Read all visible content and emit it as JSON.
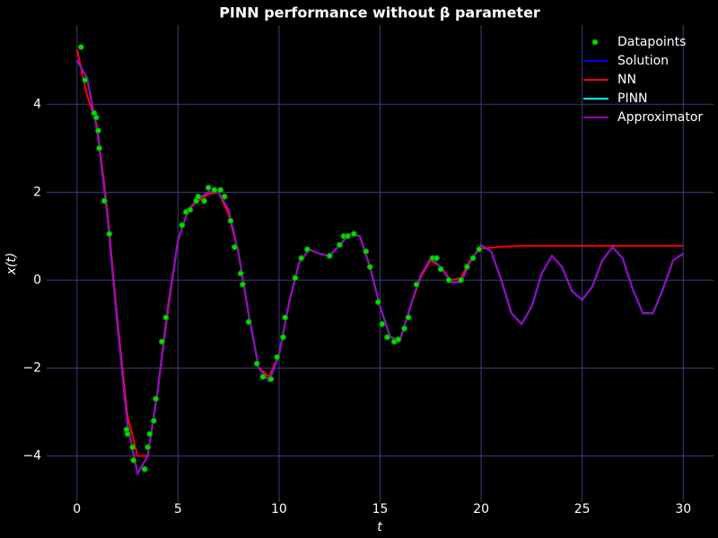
{
  "chart_data": {
    "type": "line",
    "title": "PINN performance without β parameter",
    "xlabel": "t",
    "ylabel": "x(t)",
    "background": "#000000",
    "grid": true,
    "grid_color": "#3c3c80",
    "legend": "upper right",
    "xlim": [
      -1.5,
      31.5
    ],
    "ylim": [
      -5.05,
      5.8
    ],
    "xticks": [
      0,
      5,
      10,
      15,
      20,
      25,
      30
    ],
    "yticks": [
      {
        "value": -4,
        "label": "−4"
      },
      {
        "value": -2,
        "label": "−2"
      },
      0,
      2,
      4
    ],
    "x": [
      0,
      0.5,
      1,
      1.5,
      2,
      2.5,
      3,
      3.5,
      4,
      4.5,
      5,
      5.5,
      6,
      6.5,
      7,
      7.5,
      8,
      8.5,
      9,
      9.5,
      10,
      10.5,
      11,
      11.5,
      12,
      12.5,
      13,
      13.5,
      14,
      14.5,
      15,
      15.5,
      16,
      16.5,
      17,
      17.5,
      18,
      18.5,
      19,
      19.5,
      20,
      20.5,
      21,
      21.5,
      22,
      22.5,
      23,
      23.5,
      24,
      24.5,
      25,
      25.5,
      26,
      26.5,
      27,
      27.5,
      28,
      28.5,
      29,
      29.5,
      30
    ],
    "series": [
      {
        "name": "Datapoints",
        "type": "scatter",
        "color": "#00e000",
        "x": [
          0.2,
          0.4,
          0.85,
          0.95,
          1.05,
          1.1,
          1.35,
          1.6,
          2.45,
          2.5,
          2.75,
          2.8,
          3.35,
          3.5,
          3.6,
          3.8,
          3.9,
          4.2,
          4.4,
          5.2,
          5.4,
          5.6,
          5.9,
          6.0,
          6.3,
          6.5,
          6.8,
          7.1,
          7.3,
          7.6,
          7.8,
          8.1,
          8.2,
          8.5,
          8.9,
          9.2,
          9.6,
          9.9,
          10.2,
          10.3,
          10.8,
          11.1,
          11.4,
          12.5,
          13.0,
          13.2,
          13.4,
          13.7,
          14.3,
          14.5,
          14.9,
          15.1,
          15.35,
          15.7,
          15.9,
          16.2,
          16.4,
          16.8,
          17.6,
          17.8,
          18.0,
          18.4,
          19.0,
          19.3,
          19.6,
          19.9
        ],
        "values": [
          5.3,
          4.55,
          3.8,
          3.7,
          3.4,
          3.0,
          1.8,
          1.05,
          -3.4,
          -3.5,
          -3.8,
          -4.1,
          -4.3,
          -3.8,
          -3.5,
          -3.2,
          -2.7,
          -1.4,
          -0.85,
          1.25,
          1.55,
          1.6,
          1.8,
          1.9,
          1.8,
          2.1,
          2.05,
          2.05,
          1.9,
          1.35,
          0.75,
          0.15,
          -0.1,
          -0.95,
          -1.9,
          -2.2,
          -2.25,
          -1.75,
          -1.3,
          -0.85,
          0.05,
          0.5,
          0.7,
          0.55,
          0.8,
          1.0,
          1.0,
          1.05,
          0.65,
          0.3,
          -0.5,
          -1.0,
          -1.3,
          -1.4,
          -1.35,
          -1.1,
          -0.85,
          -0.1,
          0.5,
          0.5,
          0.25,
          0.0,
          0.0,
          0.3,
          0.5,
          0.7
        ]
      },
      {
        "name": "Solution",
        "color": "#0000ff",
        "values": [
          5.0,
          4.6,
          3.4,
          1.5,
          -1.0,
          -3.3,
          -4.4,
          -4.0,
          -2.5,
          -0.6,
          0.9,
          1.6,
          1.85,
          2.0,
          2.0,
          1.6,
          0.6,
          -0.8,
          -2.0,
          -2.3,
          -1.7,
          -0.5,
          0.4,
          0.7,
          0.6,
          0.55,
          0.8,
          1.05,
          1.0,
          0.3,
          -0.6,
          -1.3,
          -1.35,
          -0.6,
          0.1,
          0.5,
          0.3,
          -0.05,
          -0.05,
          0.45,
          0.8,
          0.65,
          0.0,
          -0.75,
          -1.0,
          -0.6,
          0.15,
          0.55,
          0.3,
          -0.25,
          -0.45,
          -0.15,
          0.45,
          0.75,
          0.5,
          -0.2,
          -0.75,
          -0.75,
          -0.2,
          0.45,
          0.6
        ]
      },
      {
        "name": "NN",
        "color": "#ff0000",
        "values": [
          5.25,
          4.2,
          3.5,
          1.6,
          -0.9,
          -3.1,
          -4.0,
          -4.0,
          -2.5,
          -0.7,
          0.9,
          1.6,
          1.8,
          1.95,
          2.0,
          1.5,
          0.6,
          -0.8,
          -2.0,
          -2.2,
          -1.7,
          -0.5,
          0.4,
          0.7,
          0.6,
          0.55,
          0.8,
          1.05,
          1.0,
          0.3,
          -0.6,
          -1.3,
          -1.35,
          -0.6,
          0.05,
          0.45,
          0.3,
          0.0,
          0.05,
          0.5,
          0.72,
          0.74,
          0.76,
          0.77,
          0.78,
          0.78,
          0.78,
          0.78,
          0.78,
          0.78,
          0.78,
          0.78,
          0.78,
          0.78,
          0.78,
          0.78,
          0.78,
          0.78,
          0.78,
          0.78,
          0.78
        ]
      },
      {
        "name": "PINN",
        "color": "#00ffff",
        "values": [
          5.0,
          4.6,
          3.4,
          1.5,
          -1.0,
          -3.3,
          -4.4,
          -4.0,
          -2.5,
          -0.6,
          0.9,
          1.6,
          1.85,
          2.0,
          2.0,
          1.6,
          0.6,
          -0.8,
          -2.0,
          -2.3,
          -1.7,
          -0.5,
          0.4,
          0.7,
          0.6,
          0.55,
          0.8,
          1.05,
          1.0,
          0.3,
          -0.6,
          -1.3,
          -1.35,
          -0.6,
          0.1,
          0.5,
          0.3,
          -0.05,
          -0.05,
          0.45,
          0.8,
          0.65,
          0.0,
          -0.75,
          -1.0,
          -0.6,
          0.15,
          0.55,
          0.3,
          -0.25,
          -0.45,
          -0.15,
          0.45,
          0.75,
          0.5,
          -0.2,
          -0.75,
          -0.75,
          -0.2,
          0.45,
          0.6
        ]
      },
      {
        "name": "Approximator",
        "color": "#a000c0",
        "values": [
          5.0,
          4.6,
          3.4,
          1.5,
          -1.0,
          -3.3,
          -4.4,
          -4.0,
          -2.5,
          -0.6,
          0.9,
          1.6,
          1.85,
          2.0,
          2.0,
          1.6,
          0.6,
          -0.8,
          -2.0,
          -2.3,
          -1.7,
          -0.5,
          0.4,
          0.7,
          0.6,
          0.55,
          0.8,
          1.05,
          1.0,
          0.3,
          -0.6,
          -1.3,
          -1.35,
          -0.6,
          0.1,
          0.5,
          0.3,
          -0.05,
          -0.05,
          0.45,
          0.8,
          0.65,
          0.0,
          -0.75,
          -1.0,
          -0.6,
          0.15,
          0.55,
          0.3,
          -0.25,
          -0.45,
          -0.15,
          0.45,
          0.75,
          0.5,
          -0.2,
          -0.75,
          -0.75,
          -0.2,
          0.45,
          0.6
        ]
      }
    ]
  }
}
